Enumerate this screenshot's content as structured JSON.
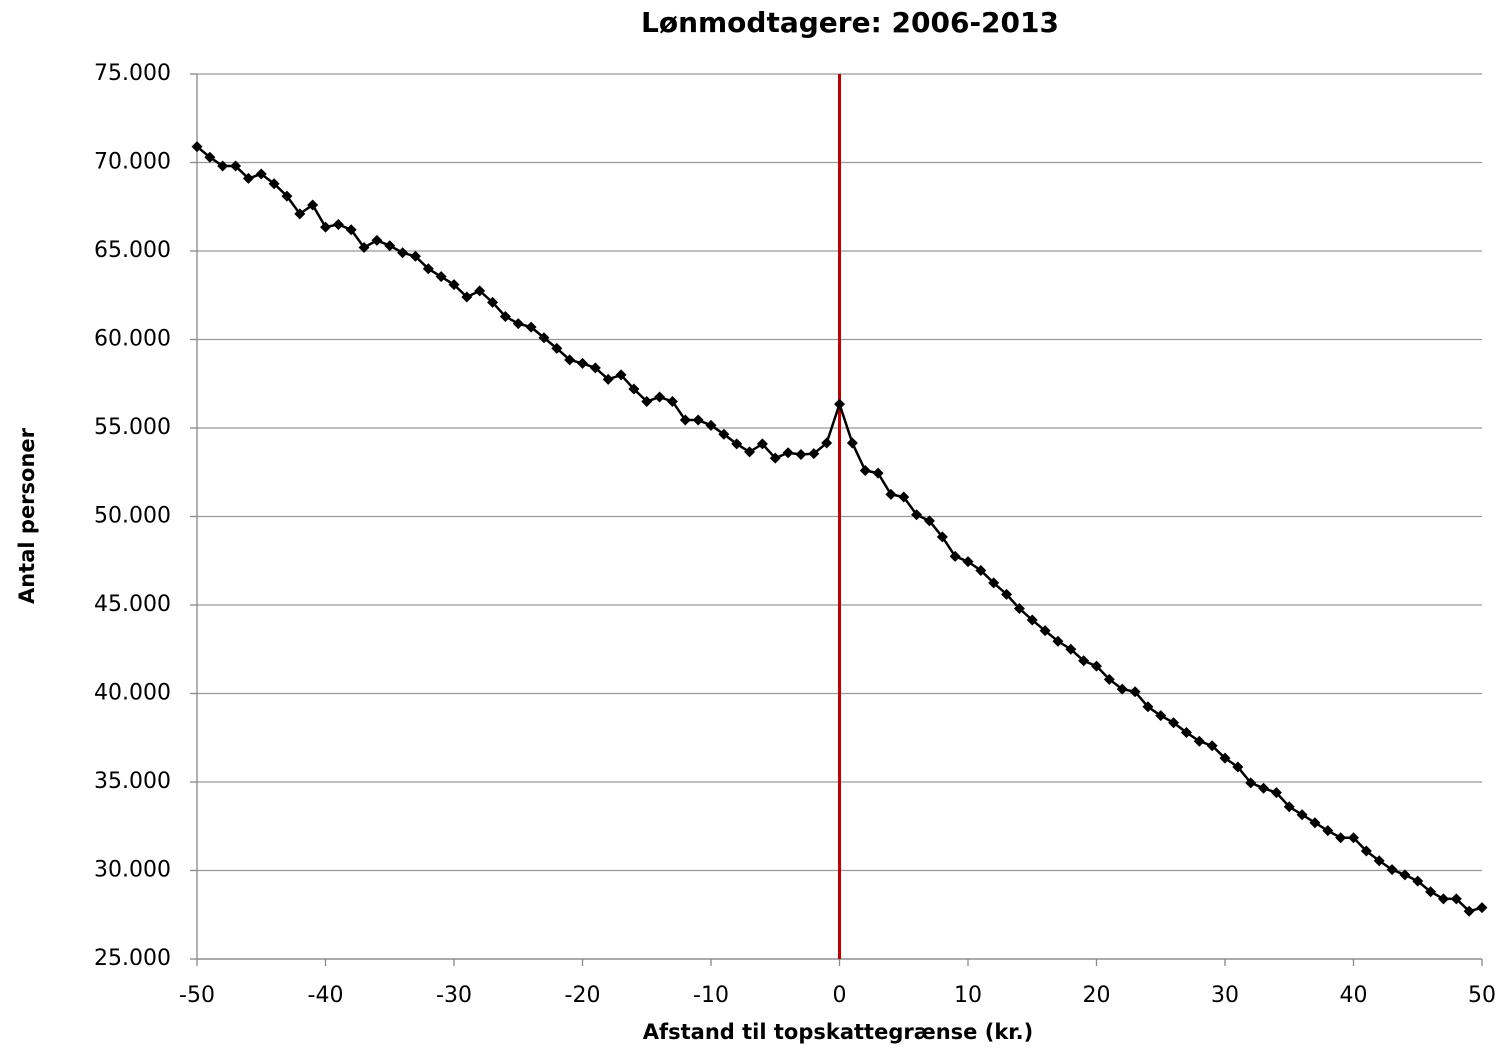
{
  "chart_data": {
    "type": "line",
    "title": "Lønmodtagere: 2006-2013",
    "x_label": "Afstand til topskattegrænse (kr.)",
    "y_label": "Antal personer",
    "x": [
      -50,
      -49,
      -48,
      -47,
      -46,
      -45,
      -44,
      -43,
      -42,
      -41,
      -40,
      -39,
      -38,
      -37,
      -36,
      -35,
      -34,
      -33,
      -32,
      -31,
      -30,
      -29,
      -28,
      -27,
      -26,
      -25,
      -24,
      -23,
      -22,
      -21,
      -20,
      -19,
      -18,
      -17,
      -16,
      -15,
      -14,
      -13,
      -12,
      -11,
      -10,
      -9,
      -8,
      -7,
      -6,
      -5,
      -4,
      -3,
      -2,
      -1,
      0,
      1,
      2,
      3,
      4,
      5,
      6,
      7,
      8,
      9,
      10,
      11,
      12,
      13,
      14,
      15,
      16,
      17,
      18,
      19,
      20,
      21,
      22,
      23,
      24,
      25,
      26,
      27,
      28,
      29,
      30,
      31,
      32,
      33,
      34,
      35,
      36,
      37,
      38,
      39,
      40,
      41,
      42,
      43,
      44,
      45,
      46,
      47,
      48,
      49,
      50
    ],
    "series": [
      {
        "name": "Lønmodtagere",
        "color": "#000000",
        "values": [
          70900,
          70300,
          69800,
          69800,
          69100,
          69350,
          68800,
          68100,
          67100,
          67600,
          66350,
          66500,
          66200,
          65200,
          65600,
          65300,
          64900,
          64700,
          64000,
          63550,
          63100,
          62400,
          62750,
          62100,
          61300,
          60900,
          60700,
          60100,
          59500,
          58850,
          58650,
          58400,
          57750,
          58000,
          57200,
          56500,
          56750,
          56500,
          55450,
          55450,
          55150,
          54650,
          54100,
          53650,
          54100,
          53300,
          53600,
          53500,
          53550,
          54150,
          56350,
          54150,
          52600,
          52450,
          51250,
          51100,
          50100,
          49750,
          48850,
          47750,
          47450,
          46950,
          46250,
          45600,
          44800,
          44150,
          43550,
          42950,
          42500,
          41850,
          41550,
          40800,
          40250,
          40100,
          39250,
          38750,
          38350,
          37800,
          37300,
          37050,
          36350,
          35850,
          34950,
          34650,
          34400,
          33600,
          33150,
          32700,
          32250,
          31850,
          31850,
          31100,
          30550,
          30050,
          29750,
          29400,
          28800,
          28400,
          28400,
          27700,
          27900
        ]
      }
    ],
    "reference_line": {
      "x": 0,
      "color": "#c00000"
    },
    "xlim": [
      -50,
      50
    ],
    "xticks": [
      -50,
      -40,
      -30,
      -20,
      -10,
      0,
      10,
      20,
      30,
      40,
      50
    ],
    "ylim": [
      25000,
      75000
    ],
    "yticks": [
      {
        "value": 25000,
        "label": "25.000"
      },
      {
        "value": 30000,
        "label": "30.000"
      },
      {
        "value": 35000,
        "label": "35.000"
      },
      {
        "value": 40000,
        "label": "40.000"
      },
      {
        "value": 45000,
        "label": "45.000"
      },
      {
        "value": 50000,
        "label": "50.000"
      },
      {
        "value": 55000,
        "label": "55.000"
      },
      {
        "value": 60000,
        "label": "60.000"
      },
      {
        "value": 65000,
        "label": "65.000"
      },
      {
        "value": 70000,
        "label": "70.000"
      },
      {
        "value": 75000,
        "label": "75.000"
      }
    ],
    "grid": true
  }
}
